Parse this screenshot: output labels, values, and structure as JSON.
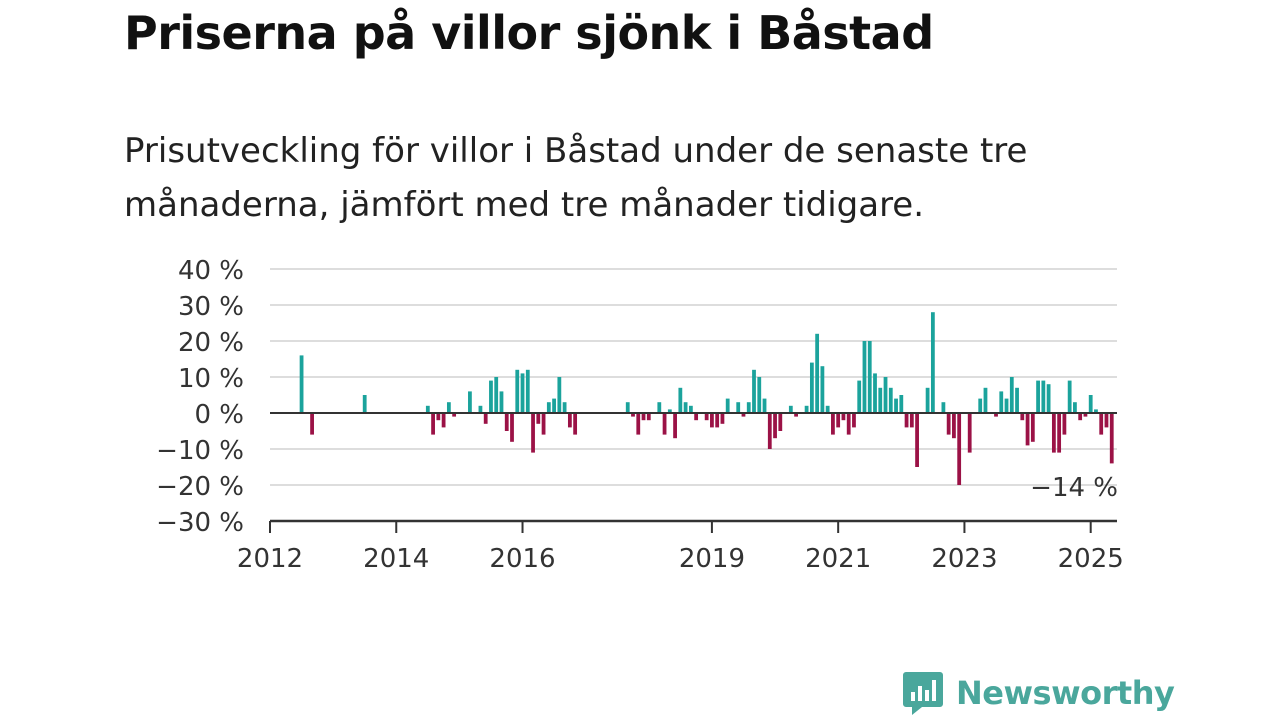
{
  "title": "Priserna på villor sjönk i Båstad",
  "subtitle": "Prisutveckling för villor i Båstad under de senaste tre månaderna, jämfört med tre månader tidigare.",
  "brand": {
    "name": "Newsworthy",
    "color": "#4aa79c",
    "icon": "newsworthy-chart-bubble-icon"
  },
  "colors": {
    "positive": "#1ba39c",
    "negative": "#9b1246",
    "grid": "#dddddd",
    "axis": "#333333"
  },
  "chart_data": {
    "type": "bar",
    "ylim": [
      -30,
      40
    ],
    "yticks": [
      40,
      30,
      20,
      10,
      0,
      -10,
      -20,
      -30
    ],
    "ytick_labels": [
      "40 %",
      "30 %",
      "20 %",
      "10 %",
      "0 %",
      "−10 %",
      "−20 %",
      "−30 %"
    ],
    "xticks": [
      {
        "label": "2012",
        "month": "2012-01"
      },
      {
        "label": "2014",
        "month": "2014-01"
      },
      {
        "label": "2016",
        "month": "2016-01"
      },
      {
        "label": "2019",
        "month": "2019-01"
      },
      {
        "label": "2021",
        "month": "2021-01"
      },
      {
        "label": "2023",
        "month": "2023-01"
      },
      {
        "label": "2025",
        "month": "2025-01"
      }
    ],
    "x_range": [
      "2012-01",
      "2025-06"
    ],
    "grid": true,
    "annotation": {
      "text": "−14 %",
      "month": "2025-01",
      "value": -14
    },
    "bars": [
      {
        "month": "2012-07",
        "value": 16
      },
      {
        "month": "2012-09",
        "value": -6
      },
      {
        "month": "2013-07",
        "value": 5
      },
      {
        "month": "2014-07",
        "value": 2
      },
      {
        "month": "2014-08",
        "value": -6
      },
      {
        "month": "2014-09",
        "value": -2
      },
      {
        "month": "2014-10",
        "value": -4
      },
      {
        "month": "2014-11",
        "value": 3
      },
      {
        "month": "2014-12",
        "value": -1
      },
      {
        "month": "2015-03",
        "value": 6
      },
      {
        "month": "2015-05",
        "value": 2
      },
      {
        "month": "2015-06",
        "value": -3
      },
      {
        "month": "2015-07",
        "value": 9
      },
      {
        "month": "2015-08",
        "value": 10
      },
      {
        "month": "2015-09",
        "value": 6
      },
      {
        "month": "2015-10",
        "value": -5
      },
      {
        "month": "2015-11",
        "value": -8
      },
      {
        "month": "2015-12",
        "value": 12
      },
      {
        "month": "2016-01",
        "value": 11
      },
      {
        "month": "2016-02",
        "value": 12
      },
      {
        "month": "2016-03",
        "value": -11
      },
      {
        "month": "2016-04",
        "value": -3
      },
      {
        "month": "2016-05",
        "value": -6
      },
      {
        "month": "2016-06",
        "value": 3
      },
      {
        "month": "2016-07",
        "value": 4
      },
      {
        "month": "2016-08",
        "value": 10
      },
      {
        "month": "2016-09",
        "value": 3
      },
      {
        "month": "2016-10",
        "value": -4
      },
      {
        "month": "2016-11",
        "value": -6
      },
      {
        "month": "2017-09",
        "value": 3
      },
      {
        "month": "2017-10",
        "value": -1
      },
      {
        "month": "2017-11",
        "value": -6
      },
      {
        "month": "2017-12",
        "value": -2
      },
      {
        "month": "2018-01",
        "value": -2
      },
      {
        "month": "2018-03",
        "value": 3
      },
      {
        "month": "2018-04",
        "value": -6
      },
      {
        "month": "2018-05",
        "value": 1
      },
      {
        "month": "2018-06",
        "value": -7
      },
      {
        "month": "2018-07",
        "value": 7
      },
      {
        "month": "2018-08",
        "value": 3
      },
      {
        "month": "2018-09",
        "value": 2
      },
      {
        "month": "2018-10",
        "value": -2
      },
      {
        "month": "2018-12",
        "value": -2
      },
      {
        "month": "2019-01",
        "value": -4
      },
      {
        "month": "2019-02",
        "value": -4
      },
      {
        "month": "2019-03",
        "value": -3
      },
      {
        "month": "2019-04",
        "value": 4
      },
      {
        "month": "2019-06",
        "value": 3
      },
      {
        "month": "2019-07",
        "value": -1
      },
      {
        "month": "2019-08",
        "value": 3
      },
      {
        "month": "2019-09",
        "value": 12
      },
      {
        "month": "2019-10",
        "value": 10
      },
      {
        "month": "2019-11",
        "value": 4
      },
      {
        "month": "2019-12",
        "value": -10
      },
      {
        "month": "2020-01",
        "value": -7
      },
      {
        "month": "2020-02",
        "value": -5
      },
      {
        "month": "2020-04",
        "value": 2
      },
      {
        "month": "2020-05",
        "value": -1
      },
      {
        "month": "2020-07",
        "value": 2
      },
      {
        "month": "2020-08",
        "value": 14
      },
      {
        "month": "2020-09",
        "value": 22
      },
      {
        "month": "2020-10",
        "value": 13
      },
      {
        "month": "2020-11",
        "value": 2
      },
      {
        "month": "2020-12",
        "value": -6
      },
      {
        "month": "2021-01",
        "value": -4
      },
      {
        "month": "2021-02",
        "value": -2
      },
      {
        "month": "2021-03",
        "value": -6
      },
      {
        "month": "2021-04",
        "value": -4
      },
      {
        "month": "2021-05",
        "value": 9
      },
      {
        "month": "2021-06",
        "value": 20
      },
      {
        "month": "2021-07",
        "value": 20
      },
      {
        "month": "2021-08",
        "value": 11
      },
      {
        "month": "2021-09",
        "value": 7
      },
      {
        "month": "2021-10",
        "value": 10
      },
      {
        "month": "2021-11",
        "value": 7
      },
      {
        "month": "2021-12",
        "value": 4
      },
      {
        "month": "2022-01",
        "value": 5
      },
      {
        "month": "2022-02",
        "value": -4
      },
      {
        "month": "2022-03",
        "value": -4
      },
      {
        "month": "2022-04",
        "value": -15
      },
      {
        "month": "2022-06",
        "value": 7
      },
      {
        "month": "2022-07",
        "value": 28
      },
      {
        "month": "2022-09",
        "value": 3
      },
      {
        "month": "2022-10",
        "value": -6
      },
      {
        "month": "2022-11",
        "value": -7
      },
      {
        "month": "2022-12",
        "value": -20
      },
      {
        "month": "2023-02",
        "value": -11
      },
      {
        "month": "2023-04",
        "value": 4
      },
      {
        "month": "2023-05",
        "value": 7
      },
      {
        "month": "2023-07",
        "value": -1
      },
      {
        "month": "2023-08",
        "value": 6
      },
      {
        "month": "2023-09",
        "value": 4
      },
      {
        "month": "2023-10",
        "value": 10
      },
      {
        "month": "2023-11",
        "value": 7
      },
      {
        "month": "2023-12",
        "value": -2
      },
      {
        "month": "2024-01",
        "value": -9
      },
      {
        "month": "2024-02",
        "value": -8
      },
      {
        "month": "2024-03",
        "value": 9
      },
      {
        "month": "2024-04",
        "value": 9
      },
      {
        "month": "2024-05",
        "value": 8
      },
      {
        "month": "2024-06",
        "value": -11
      },
      {
        "month": "2024-07",
        "value": -11
      },
      {
        "month": "2024-08",
        "value": -6
      },
      {
        "month": "2024-09",
        "value": 9
      },
      {
        "month": "2024-10",
        "value": 3
      },
      {
        "month": "2024-11",
        "value": -2
      },
      {
        "month": "2024-12",
        "value": -1
      },
      {
        "month": "2025-01",
        "value": 5
      },
      {
        "month": "2025-02",
        "value": 1
      },
      {
        "month": "2025-03",
        "value": -6
      },
      {
        "month": "2025-04",
        "value": -4
      },
      {
        "month": "2025-05",
        "value": -14
      }
    ]
  }
}
